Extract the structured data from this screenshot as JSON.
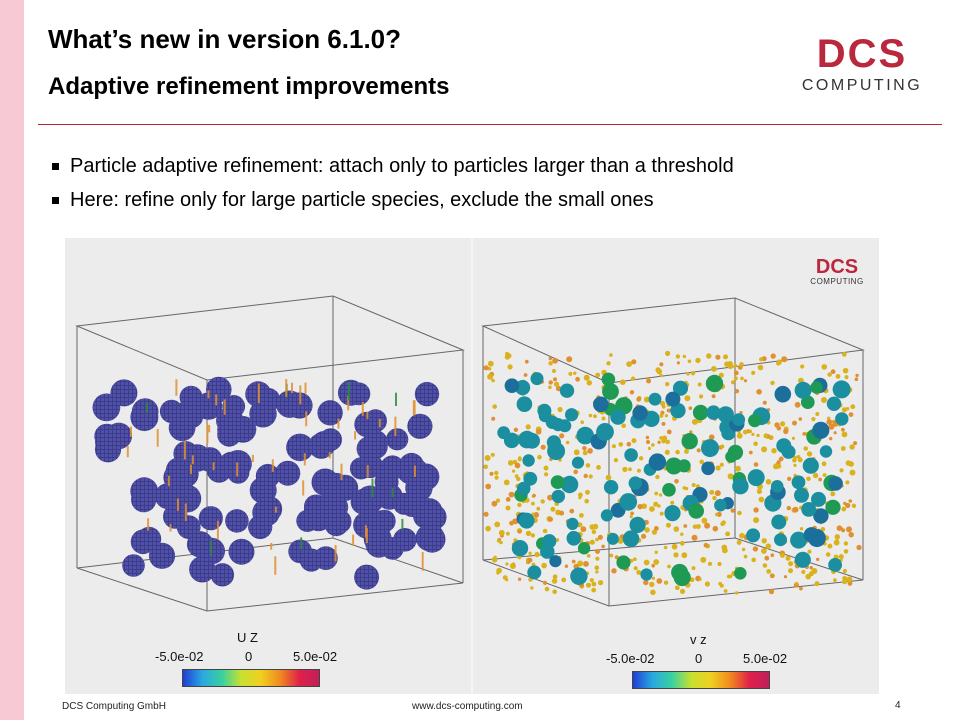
{
  "slide": {
    "title": "What’s new in version 6.1.0?",
    "subtitle": "Adaptive refinement improvements",
    "page_number": "4"
  },
  "logo": {
    "top_text": "DCS",
    "bottom_text": "COMPUTING",
    "color": "#b9283d"
  },
  "bullets": [
    {
      "text": "Particle adaptive refinement: attach only to particles larger than a threshold"
    },
    {
      "text": "Here: refine only for large particle species, exclude the small ones"
    }
  ],
  "figure": {
    "left_panel": {
      "colorbar": {
        "title": "U Z",
        "min_label": "-5.0e-02",
        "mid_label": "0",
        "max_label": "5.0e-02"
      }
    },
    "right_panel": {
      "watermark": {
        "top_text": "DCS",
        "bottom_text": "COMPUTING"
      },
      "colorbar": {
        "title": "v z",
        "min_label": "-5.0e-02",
        "mid_label": "0",
        "max_label": "5.0e-02"
      }
    }
  },
  "footer": {
    "company": "DCS Computing GmbH",
    "url": "www.dcs-computing.com"
  },
  "colors": {
    "accent": "#b9283d",
    "strip": "#f7c9d4",
    "sphere_blue": "#3f3f8f",
    "sphere_teal": "#1b8fa0",
    "small_particle": "#d9b21c",
    "refinement_orange": "#e09030"
  }
}
